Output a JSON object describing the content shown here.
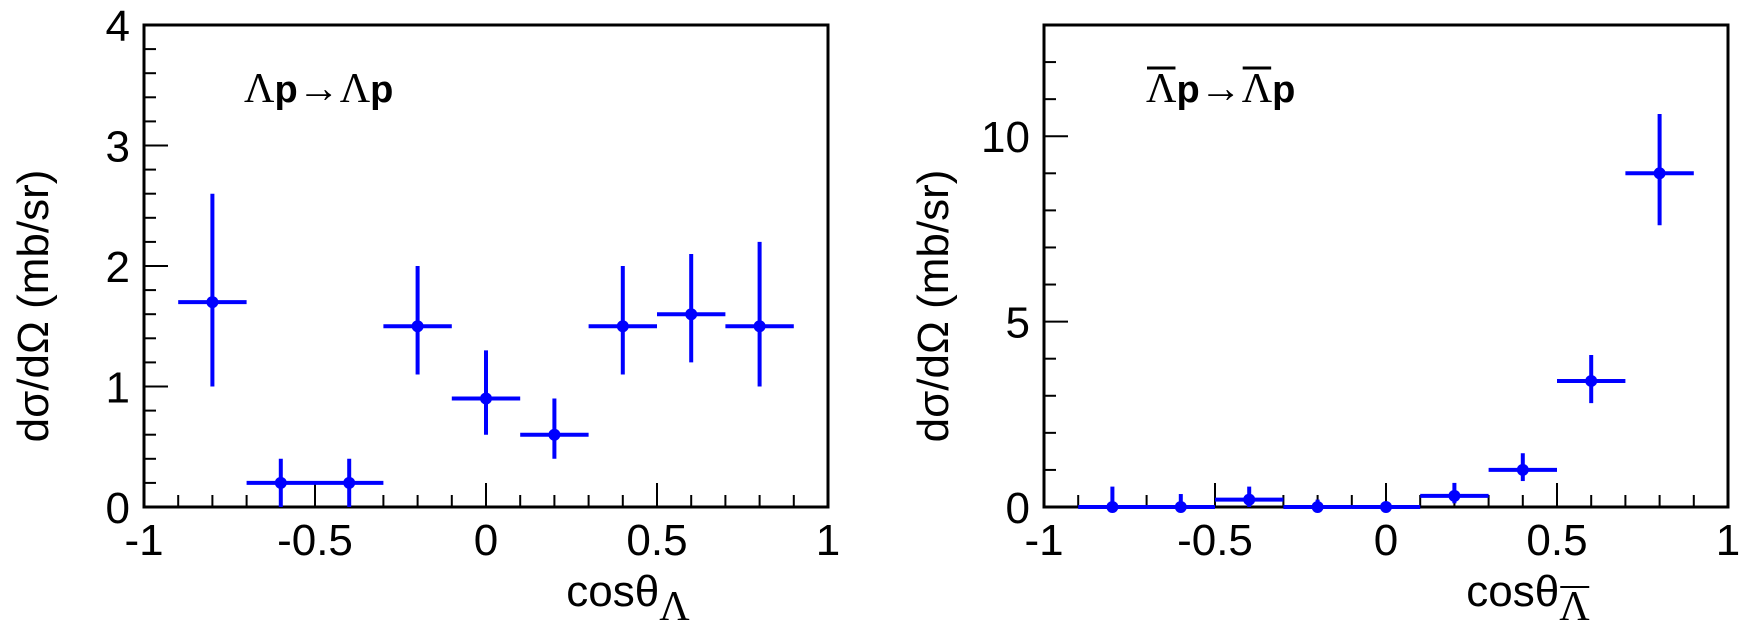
{
  "chart_data": [
    {
      "type": "scatter",
      "title": "",
      "annotation": {
        "particle": "Λ",
        "bar": false,
        "rest1": "p",
        "arrow": "→",
        "rest2": "p"
      },
      "xlabel": {
        "main": "cosθ",
        "sub": "Λ",
        "sub_bar": false
      },
      "ylabel": "dσ/dΩ (mb/sr)",
      "xlim": [
        -1,
        1
      ],
      "ylim": [
        0,
        4
      ],
      "xticks": [
        "-1",
        "-0.5",
        "0",
        "0.5",
        "1"
      ],
      "xtick_values": [
        -1,
        -0.5,
        0,
        0.5,
        1
      ],
      "yticks": [
        "0",
        "1",
        "2",
        "3",
        "4"
      ],
      "ytick_values": [
        0,
        1,
        2,
        3,
        4
      ],
      "yminor_step": 0.2,
      "color": "#0000ff",
      "points": [
        {
          "x": -0.8,
          "y": 1.7,
          "xerr": 0.1,
          "ylo": 1.0,
          "yhi": 2.6
        },
        {
          "x": -0.6,
          "y": 0.2,
          "xerr": 0.1,
          "ylo": 0.0,
          "yhi": 0.4
        },
        {
          "x": -0.4,
          "y": 0.2,
          "xerr": 0.1,
          "ylo": 0.0,
          "yhi": 0.4
        },
        {
          "x": -0.2,
          "y": 1.5,
          "xerr": 0.1,
          "ylo": 1.1,
          "yhi": 2.0
        },
        {
          "x": 0.0,
          "y": 0.9,
          "xerr": 0.1,
          "ylo": 0.6,
          "yhi": 1.3
        },
        {
          "x": 0.2,
          "y": 0.6,
          "xerr": 0.1,
          "ylo": 0.4,
          "yhi": 0.9
        },
        {
          "x": 0.4,
          "y": 1.5,
          "xerr": 0.1,
          "ylo": 1.1,
          "yhi": 2.0
        },
        {
          "x": 0.6,
          "y": 1.6,
          "xerr": 0.1,
          "ylo": 1.2,
          "yhi": 2.1
        },
        {
          "x": 0.8,
          "y": 1.5,
          "xerr": 0.1,
          "ylo": 1.0,
          "yhi": 2.2
        }
      ]
    },
    {
      "type": "scatter",
      "title": "",
      "annotation": {
        "particle": "Λ",
        "bar": true,
        "rest1": "p",
        "arrow": "→",
        "rest2": "p"
      },
      "xlabel": {
        "main": "cosθ",
        "sub": "Λ",
        "sub_bar": true
      },
      "ylabel": "dσ/dΩ (mb/sr)",
      "xlim": [
        -1,
        1
      ],
      "ylim": [
        0,
        13
      ],
      "xticks": [
        "-1",
        "-0.5",
        "0",
        "0.5",
        "1"
      ],
      "xtick_values": [
        -1,
        -0.5,
        0,
        0.5,
        1
      ],
      "yticks": [
        "0",
        "5",
        "10"
      ],
      "ytick_values": [
        0,
        5,
        10
      ],
      "yminor_step": 1,
      "color": "#0000ff",
      "points": [
        {
          "x": -0.8,
          "y": 0.0,
          "xerr": 0.1,
          "ylo": 0.0,
          "yhi": 0.55
        },
        {
          "x": -0.6,
          "y": 0.0,
          "xerr": 0.1,
          "ylo": 0.0,
          "yhi": 0.35
        },
        {
          "x": -0.4,
          "y": 0.2,
          "xerr": 0.1,
          "ylo": 0.0,
          "yhi": 0.55
        },
        {
          "x": -0.2,
          "y": 0.0,
          "xerr": 0.1,
          "ylo": 0.0,
          "yhi": 0.2
        },
        {
          "x": 0.0,
          "y": 0.0,
          "xerr": 0.1,
          "ylo": 0.0,
          "yhi": 0.1
        },
        {
          "x": 0.2,
          "y": 0.3,
          "xerr": 0.1,
          "ylo": 0.1,
          "yhi": 0.65
        },
        {
          "x": 0.4,
          "y": 1.0,
          "xerr": 0.1,
          "ylo": 0.7,
          "yhi": 1.45
        },
        {
          "x": 0.6,
          "y": 3.4,
          "xerr": 0.1,
          "ylo": 2.8,
          "yhi": 4.1
        },
        {
          "x": 0.8,
          "y": 9.0,
          "xerr": 0.1,
          "ylo": 7.6,
          "yhi": 10.6
        }
      ]
    }
  ]
}
